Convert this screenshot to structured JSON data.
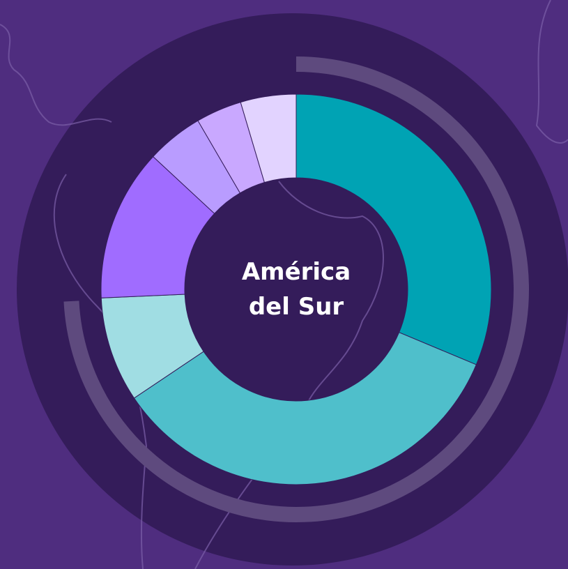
{
  "chart_data": {
    "type": "donut",
    "title": "América del Sur",
    "categories": [
      null,
      null,
      null,
      null,
      null,
      null,
      null
    ],
    "values": [
      31.3,
      34.3,
      8.7,
      12.6,
      4.7,
      3.8,
      4.6
    ],
    "colors": [
      "#00a3b4",
      "#4fbfcb",
      "#a0dde3",
      "#a06cff",
      "#b99cff",
      "#c9a8ff",
      "#e2d3ff"
    ]
  }
}
